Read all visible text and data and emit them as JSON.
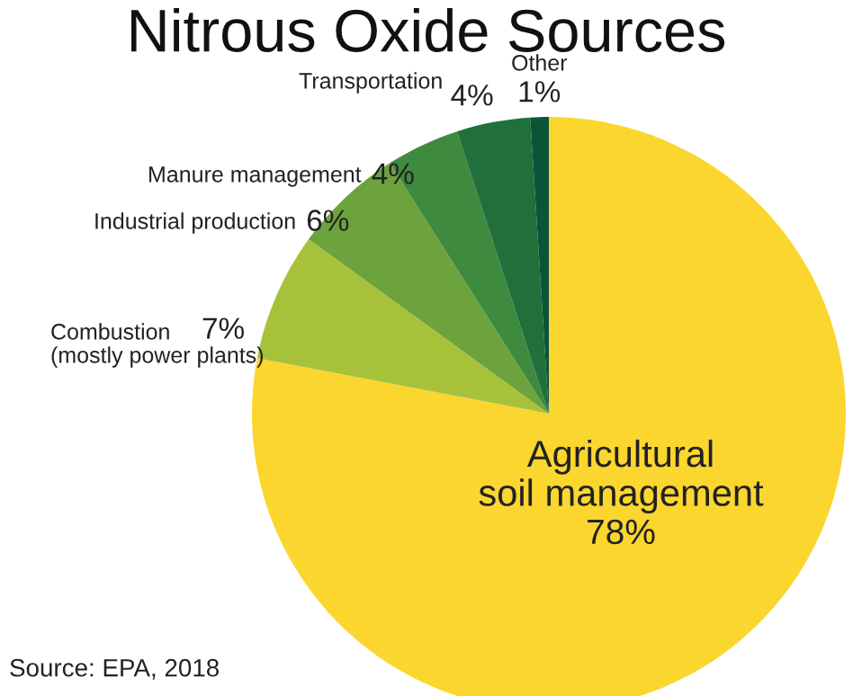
{
  "chart_data": {
    "type": "pie",
    "title": "Nitrous Oxide Sources",
    "categories": [
      "Agricultural\nsoil management",
      "Combustion\n(mostly power plants)",
      "Industrial production",
      "Manure management",
      "Transportation",
      "Other"
    ],
    "values": [
      78,
      7,
      6,
      4,
      4,
      1
    ],
    "value_labels": [
      "78%",
      "7%",
      "6%",
      "4%",
      "4%",
      "1%"
    ],
    "colors": [
      "#fbd62e",
      "#a8c13b",
      "#6ca33c",
      "#3e8a3f",
      "#216f3b",
      "#0b5438"
    ],
    "annotations": [
      "Source: EPA, 2018"
    ]
  }
}
